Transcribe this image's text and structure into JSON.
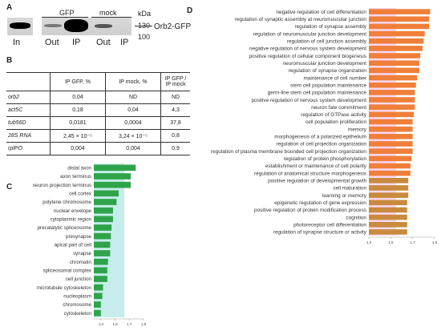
{
  "panelA": {
    "label": "A",
    "gfp": "GFP",
    "mock": "mock",
    "kda": "kDa",
    "m130": "130",
    "m100": "100",
    "protein": "Orb2-GFP",
    "lanes": [
      "In",
      "Out",
      "IP",
      "Out",
      "IP"
    ]
  },
  "panelB": {
    "label": "B",
    "headers": [
      "",
      "IP GFP, %",
      "IP mock, %",
      "IP GFP / IP mock"
    ],
    "rows": [
      {
        "gene": "orb2",
        "gfp": "0,04",
        "mock": "ND",
        "ratio": "ND"
      },
      {
        "gene": "act5C",
        "gfp": "0,18",
        "mock": "0,04",
        "ratio": "4,3"
      },
      {
        "gene": "tub56D",
        "gfp": "0,0181",
        "mock": "0,0004",
        "ratio": "37,8"
      },
      {
        "gene": "28S RNA",
        "gfp": "2,45 × 10⁻⁵",
        "mock": "3,24 × 10⁻⁵",
        "ratio": "0,8"
      },
      {
        "gene": "rplPO",
        "gfp": "0,004",
        "mock": "0,004",
        "ratio": "0,9"
      }
    ]
  },
  "chart_data": [
    {
      "panel": "C",
      "type": "bar",
      "orientation": "horizontal",
      "categories": [
        "distal axon",
        "axon terminus",
        "neuron projection terminus",
        "cell cortex",
        "polytene chromosome",
        "nuclear envelope",
        "cytoplasmic region",
        "precatalytic spliceosome",
        "presynapse",
        "apical part of cell",
        "synapse",
        "chromatin",
        "spliceosomal complex",
        "cell junction",
        "microtubule cytoskeleton",
        "nucleoplasm",
        "chromosome",
        "cytoskeleton"
      ],
      "values": [
        1.79,
        1.72,
        1.72,
        1.55,
        1.52,
        1.47,
        1.47,
        1.45,
        1.44,
        1.43,
        1.43,
        1.4,
        1.39,
        1.39,
        1.33,
        1.32,
        1.3,
        1.3
      ],
      "xticks": [
        "1,3",
        "1,5",
        "1,7",
        "1,9"
      ],
      "xlim": [
        1.2,
        1.9
      ],
      "bar_color": "#2fa34a",
      "shade_color": "#aee6e2"
    },
    {
      "panel": "D",
      "type": "bar",
      "orientation": "horizontal",
      "categories": [
        "negative regulation of cell differentiation",
        "regulation of synaptic assembly at neuromuscular junction",
        "regulation of synapse assembly",
        "regulation of neuromuscular junction development",
        "regulation of cell junction assembly",
        "negative regulation of nervous system development",
        "positive regulation of cellular component biogenesis",
        "neuromuscular junction development",
        "regulation of synapse organization",
        "maintenance of cell number",
        "stem cell population maintenance",
        "germ-line stem cell population maintenance",
        "positive regulation of nervous system development",
        "neuron fate commitment",
        "regulation of GTPase activity",
        "cell population proliferation",
        "memory",
        "morphogenesis of a polarized epithelium",
        "regulation of cell projection organization",
        "regulation of plasma membrane bounded cell projection organization",
        "regulation of protein phosphorylation",
        "establishment or maintenance of cell polarity",
        "regulation of anatomical structure morphogenesis",
        "positive regulation of developmental growth",
        "cell maturation",
        "learning or memory",
        "epigenetic regulation of gene expression",
        "positive regulation of protein modification process",
        "cognition",
        "photoreceptor cell differentiation",
        "regulation of synapse structure or activity"
      ],
      "values": [
        1.86,
        1.85,
        1.85,
        1.81,
        1.8,
        1.79,
        1.77,
        1.76,
        1.76,
        1.74,
        1.73,
        1.72,
        1.72,
        1.72,
        1.71,
        1.7,
        1.7,
        1.7,
        1.7,
        1.7,
        1.69,
        1.68,
        1.68,
        1.66,
        1.66,
        1.66,
        1.65,
        1.65,
        1.65,
        1.65,
        1.65
      ],
      "xticks": [
        "1,3",
        "1,5",
        "1,7",
        "1,9"
      ],
      "xlim": [
        1.3,
        1.9
      ],
      "bar_color": "#f07f3a",
      "lower_bar_color": "#c98a3e",
      "shade_color": "#f3c8f0"
    }
  ]
}
